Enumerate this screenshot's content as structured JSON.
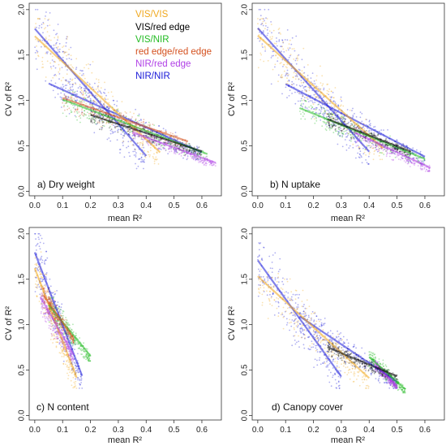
{
  "chart_data": [
    {
      "type": "scatter",
      "panel_label": "a) Dry weight",
      "xlabel": "mean R²",
      "ylabel": "CV of R²",
      "xlim": [
        -0.02,
        0.67
      ],
      "ylim": [
        -0.05,
        2.07
      ],
      "x_ticks": [
        "0.0",
        "0.1",
        "0.2",
        "0.3",
        "0.4",
        "0.5",
        "0.6"
      ],
      "y_ticks": [
        "0.0",
        "0.5",
        "1.0",
        "1.5",
        "2.0"
      ],
      "legend": {
        "position": "top-right",
        "entries": [
          {
            "name": "VIS/VIS",
            "color": "#f0a81e"
          },
          {
            "name": "VIS/red edge",
            "color": "#000000"
          },
          {
            "name": "VIS/NIR",
            "color": "#22bb22"
          },
          {
            "name": "red edge/red edge",
            "color": "#d4501e"
          },
          {
            "name": "NIR/red edge",
            "color": "#b040e6"
          },
          {
            "name": "NIR/NIR",
            "color": "#1a1ad8"
          }
        ]
      },
      "grid": false,
      "clouds": [
        {
          "series": "NIR/NIR",
          "x_range": [
            0.0,
            0.4
          ],
          "y_range": [
            0.25,
            2.0
          ]
        },
        {
          "series": "NIR/NIR",
          "x_range": [
            0.05,
            0.6
          ],
          "y_range": [
            0.35,
            1.3
          ]
        },
        {
          "series": "VIS/VIS",
          "x_range": [
            0.0,
            0.45
          ],
          "y_range": [
            0.3,
            1.9
          ]
        },
        {
          "series": "VIS/NIR",
          "x_range": [
            0.1,
            0.62
          ],
          "y_range": [
            0.35,
            1.1
          ]
        },
        {
          "series": "NIR/red edge",
          "x_range": [
            0.35,
            0.65
          ],
          "y_range": [
            0.28,
            0.7
          ]
        },
        {
          "series": "VIS/red edge",
          "x_range": [
            0.2,
            0.6
          ],
          "y_range": [
            0.4,
            0.9
          ]
        },
        {
          "series": "red edge/red edge",
          "x_range": [
            0.1,
            0.55
          ],
          "y_range": [
            0.5,
            1.1
          ]
        }
      ]
    },
    {
      "type": "scatter",
      "panel_label": "b) N uptake",
      "xlabel": "mean R²",
      "ylabel": "CV of R²",
      "xlim": [
        -0.02,
        0.67
      ],
      "ylim": [
        -0.05,
        2.07
      ],
      "x_ticks": [
        "0.0",
        "0.1",
        "0.2",
        "0.3",
        "0.4",
        "0.5",
        "0.6"
      ],
      "y_ticks": [
        "0.0",
        "0.5",
        "1.0",
        "1.5",
        "2.0"
      ],
      "grid": false,
      "clouds": [
        {
          "series": "NIR/NIR",
          "x_range": [
            0.0,
            0.4
          ],
          "y_range": [
            0.3,
            2.0
          ]
        },
        {
          "series": "NIR/NIR",
          "x_range": [
            0.1,
            0.6
          ],
          "y_range": [
            0.3,
            1.3
          ]
        },
        {
          "series": "VIS/VIS",
          "x_range": [
            0.0,
            0.45
          ],
          "y_range": [
            0.35,
            1.9
          ]
        },
        {
          "series": "VIS/NIR",
          "x_range": [
            0.15,
            0.6
          ],
          "y_range": [
            0.3,
            1.0
          ]
        },
        {
          "series": "NIR/red edge",
          "x_range": [
            0.35,
            0.62
          ],
          "y_range": [
            0.22,
            0.7
          ]
        },
        {
          "series": "VIS/red edge",
          "x_range": [
            0.25,
            0.55
          ],
          "y_range": [
            0.4,
            0.85
          ]
        }
      ]
    },
    {
      "type": "scatter",
      "panel_label": "c) N content",
      "xlabel": "mean R²",
      "ylabel": "CV of R²",
      "xlim": [
        -0.02,
        0.67
      ],
      "ylim": [
        -0.05,
        2.07
      ],
      "x_ticks": [
        "0.0",
        "0.1",
        "0.2",
        "0.3",
        "0.4",
        "0.5",
        "0.6"
      ],
      "y_ticks": [
        "0.0",
        "0.5",
        "1.0",
        "1.5",
        "2.0"
      ],
      "grid": false,
      "clouds": [
        {
          "series": "NIR/NIR",
          "x_range": [
            0.0,
            0.17
          ],
          "y_range": [
            0.3,
            2.0
          ]
        },
        {
          "series": "VIS/VIS",
          "x_range": [
            0.0,
            0.15
          ],
          "y_range": [
            0.3,
            1.8
          ]
        },
        {
          "series": "VIS/NIR",
          "x_range": [
            0.05,
            0.2
          ],
          "y_range": [
            0.6,
            1.3
          ]
        },
        {
          "series": "NIR/red edge",
          "x_range": [
            0.02,
            0.14
          ],
          "y_range": [
            0.6,
            1.4
          ]
        },
        {
          "series": "red edge/red edge",
          "x_range": [
            0.03,
            0.14
          ],
          "y_range": [
            0.8,
            1.4
          ]
        }
      ]
    },
    {
      "type": "scatter",
      "panel_label": "d) Canopy cover",
      "xlabel": "mean R²",
      "ylabel": "CV of R²",
      "xlim": [
        -0.02,
        0.67
      ],
      "ylim": [
        -0.05,
        2.07
      ],
      "x_ticks": [
        "0.0",
        "0.1",
        "0.2",
        "0.3",
        "0.4",
        "0.5",
        "0.6"
      ],
      "y_ticks": [
        "0.0",
        "0.5",
        "1.0",
        "1.5",
        "2.0"
      ],
      "grid": false,
      "clouds": [
        {
          "series": "NIR/NIR",
          "x_range": [
            0.0,
            0.3
          ],
          "y_range": [
            0.3,
            1.9
          ]
        },
        {
          "series": "NIR/NIR",
          "x_range": [
            0.15,
            0.5
          ],
          "y_range": [
            0.3,
            1.2
          ]
        },
        {
          "series": "VIS/VIS",
          "x_range": [
            0.0,
            0.4
          ],
          "y_range": [
            0.3,
            1.7
          ]
        },
        {
          "series": "VIS/NIR",
          "x_range": [
            0.4,
            0.53
          ],
          "y_range": [
            0.25,
            0.7
          ]
        },
        {
          "series": "NIR/red edge",
          "x_range": [
            0.42,
            0.5
          ],
          "y_range": [
            0.3,
            0.6
          ]
        },
        {
          "series": "VIS/red edge",
          "x_range": [
            0.25,
            0.5
          ],
          "y_range": [
            0.4,
            0.8
          ]
        }
      ]
    }
  ],
  "colors": {
    "VIS/VIS": "#f0a81e",
    "VIS/red edge": "#000000",
    "VIS/NIR": "#22bb22",
    "red edge/red edge": "#d4501e",
    "NIR/red edge": "#b040e6",
    "NIR/NIR": "#1a1ad8"
  }
}
